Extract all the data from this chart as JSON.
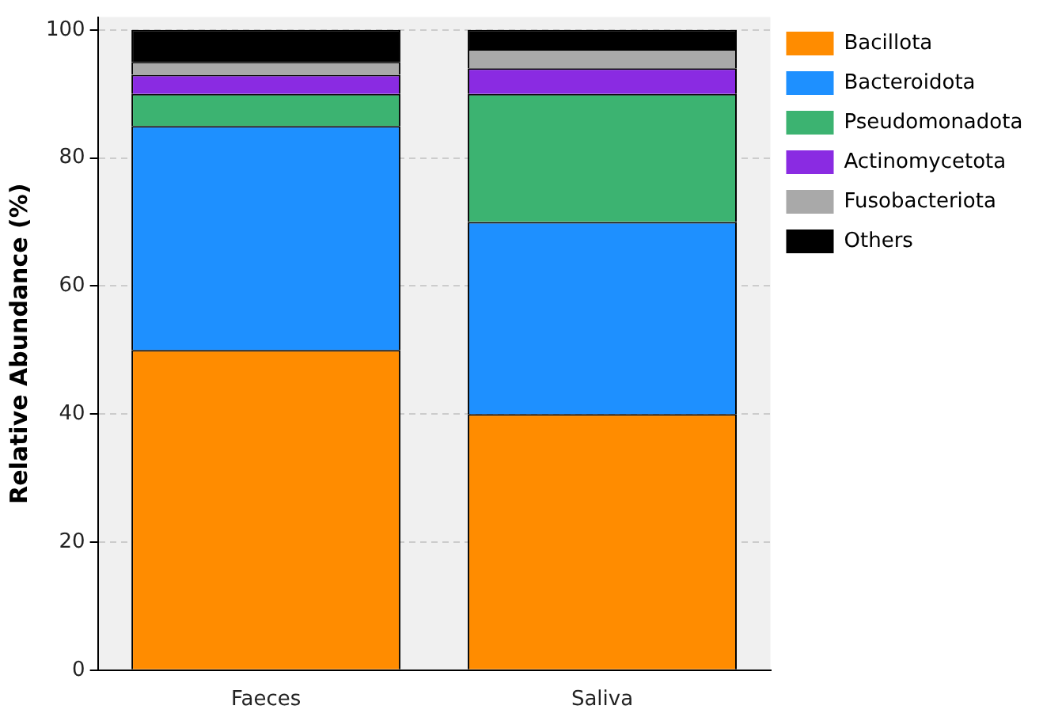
{
  "chart_data": {
    "type": "bar",
    "stacked": true,
    "ylabel": "Relative Abundance (%)",
    "categories": [
      "Faeces",
      "Saliva"
    ],
    "series": [
      {
        "name": "Bacillota",
        "color": "#ff8c00",
        "values": [
          50,
          40
        ]
      },
      {
        "name": "Bacteroidota",
        "color": "#1e90ff",
        "values": [
          35,
          30
        ]
      },
      {
        "name": "Pseudomonadota",
        "color": "#3cb371",
        "values": [
          5,
          20
        ]
      },
      {
        "name": "Actinomycetota",
        "color": "#8a2be2",
        "values": [
          3,
          4
        ]
      },
      {
        "name": "Fusobacteriota",
        "color": "#a9a9a9",
        "values": [
          2,
          3
        ]
      },
      {
        "name": "Others",
        "color": "#000000",
        "values": [
          5,
          3
        ]
      }
    ],
    "ylim": [
      0,
      102
    ],
    "yticks": [
      0,
      20,
      40,
      60,
      80,
      100
    ],
    "grid": "y",
    "legend": "right"
  }
}
